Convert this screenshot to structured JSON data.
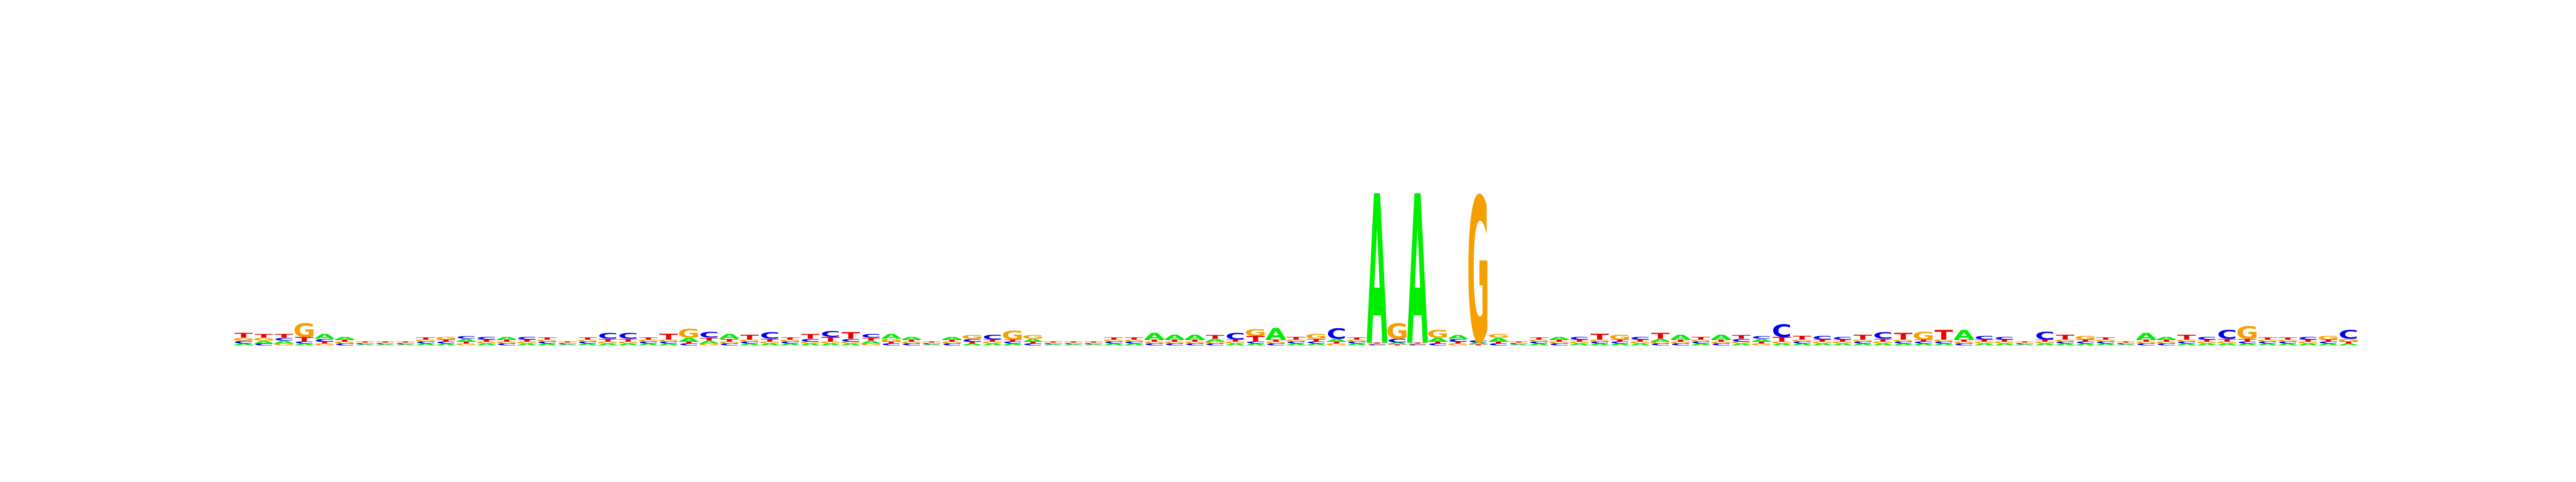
{
  "chart_data": {
    "type": "sequence-logo",
    "title": "",
    "xlabel": "",
    "ylabel": "",
    "ylim": [
      0,
      2
    ],
    "alphabet": [
      "A",
      "C",
      "G",
      "T"
    ],
    "colors": {
      "A": "#00ee00",
      "C": "#0000ee",
      "G": "#f5a000",
      "T": "#ee0000"
    },
    "positions": [
      {
        "A": 0.02,
        "C": 0.03,
        "G": 0.03,
        "T": 0.05
      },
      {
        "A": 0.03,
        "C": 0.02,
        "G": 0.03,
        "T": 0.04
      },
      {
        "A": 0.03,
        "C": 0.03,
        "G": 0.02,
        "T": 0.04
      },
      {
        "A": 0.02,
        "C": 0.02,
        "G": 0.14,
        "T": 0.05
      },
      {
        "A": 0.05,
        "C": 0.03,
        "G": 0.02,
        "T": 0.02
      },
      {
        "A": 0.03,
        "C": 0.02,
        "G": 0.02,
        "T": 0.02
      },
      {
        "A": 0.01,
        "C": 0.01,
        "G": 0.01,
        "T": 0.01
      },
      {
        "A": 0.01,
        "C": 0.01,
        "G": 0.01,
        "T": 0.01
      },
      {
        "A": 0.01,
        "C": 0.01,
        "G": 0.01,
        "T": 0.01
      },
      {
        "A": 0.02,
        "C": 0.02,
        "G": 0.02,
        "T": 0.02
      },
      {
        "A": 0.02,
        "C": 0.02,
        "G": 0.03,
        "T": 0.02
      },
      {
        "A": 0.03,
        "C": 0.03,
        "G": 0.02,
        "T": 0.02
      },
      {
        "A": 0.02,
        "C": 0.03,
        "G": 0.02,
        "T": 0.02
      },
      {
        "A": 0.03,
        "C": 0.02,
        "G": 0.02,
        "T": 0.02
      },
      {
        "A": 0.02,
        "C": 0.03,
        "G": 0.02,
        "T": 0.02
      },
      {
        "A": 0.02,
        "C": 0.02,
        "G": 0.02,
        "T": 0.02
      },
      {
        "A": 0.01,
        "C": 0.01,
        "G": 0.01,
        "T": 0.01
      },
      {
        "A": 0.02,
        "C": 0.02,
        "G": 0.02,
        "T": 0.02
      },
      {
        "A": 0.02,
        "C": 0.06,
        "G": 0.02,
        "T": 0.03
      },
      {
        "A": 0.02,
        "C": 0.06,
        "G": 0.02,
        "T": 0.03
      },
      {
        "A": 0.02,
        "C": 0.02,
        "G": 0.02,
        "T": 0.02
      },
      {
        "A": 0.02,
        "C": 0.02,
        "G": 0.02,
        "T": 0.06
      },
      {
        "A": 0.04,
        "C": 0.02,
        "G": 0.09,
        "T": 0.02
      },
      {
        "A": 0.03,
        "C": 0.06,
        "G": 0.02,
        "T": 0.03
      },
      {
        "A": 0.05,
        "C": 0.02,
        "G": 0.02,
        "T": 0.03
      },
      {
        "A": 0.02,
        "C": 0.02,
        "G": 0.02,
        "T": 0.05
      },
      {
        "A": 0.02,
        "C": 0.07,
        "G": 0.02,
        "T": 0.03
      },
      {
        "A": 0.02,
        "C": 0.02,
        "G": 0.02,
        "T": 0.02
      },
      {
        "A": 0.02,
        "C": 0.03,
        "G": 0.02,
        "T": 0.05
      },
      {
        "A": 0.02,
        "C": 0.06,
        "G": 0.02,
        "T": 0.05
      },
      {
        "A": 0.02,
        "C": 0.03,
        "G": 0.02,
        "T": 0.07
      },
      {
        "A": 0.03,
        "C": 0.04,
        "G": 0.02,
        "T": 0.03
      },
      {
        "A": 0.05,
        "C": 0.02,
        "G": 0.03,
        "T": 0.02
      },
      {
        "A": 0.03,
        "C": 0.02,
        "G": 0.02,
        "T": 0.02
      },
      {
        "A": 0.01,
        "C": 0.01,
        "G": 0.01,
        "T": 0.01
      },
      {
        "A": 0.03,
        "C": 0.02,
        "G": 0.02,
        "T": 0.02
      },
      {
        "A": 0.02,
        "C": 0.03,
        "G": 0.04,
        "T": 0.02
      },
      {
        "A": 0.02,
        "C": 0.05,
        "G": 0.02,
        "T": 0.02
      },
      {
        "A": 0.02,
        "C": 0.02,
        "G": 0.09,
        "T": 0.02
      },
      {
        "A": 0.03,
        "C": 0.02,
        "G": 0.04,
        "T": 0.02
      },
      {
        "A": 0.01,
        "C": 0.01,
        "G": 0.01,
        "T": 0.01
      },
      {
        "A": 0.01,
        "C": 0.01,
        "G": 0.01,
        "T": 0.01
      },
      {
        "A": 0.01,
        "C": 0.01,
        "G": 0.01,
        "T": 0.01
      },
      {
        "A": 0.02,
        "C": 0.02,
        "G": 0.02,
        "T": 0.02
      },
      {
        "A": 0.02,
        "C": 0.02,
        "G": 0.02,
        "T": 0.02
      },
      {
        "A": 0.07,
        "C": 0.02,
        "G": 0.02,
        "T": 0.02
      },
      {
        "A": 0.05,
        "C": 0.02,
        "G": 0.02,
        "T": 0.02
      },
      {
        "A": 0.05,
        "C": 0.02,
        "G": 0.02,
        "T": 0.02
      },
      {
        "A": 0.03,
        "C": 0.02,
        "G": 0.02,
        "T": 0.04
      },
      {
        "A": 0.02,
        "C": 0.07,
        "G": 0.02,
        "T": 0.02
      },
      {
        "A": 0.02,
        "C": 0.02,
        "G": 0.07,
        "T": 0.06
      },
      {
        "A": 0.12,
        "C": 0.02,
        "G": 0.02,
        "T": 0.02
      },
      {
        "A": 0.02,
        "C": 0.02,
        "G": 0.02,
        "T": 0.03
      },
      {
        "A": 0.02,
        "C": 0.02,
        "G": 0.05,
        "T": 0.03
      },
      {
        "A": 0.03,
        "C": 0.11,
        "G": 0.02,
        "T": 0.02
      },
      {
        "A": 0.02,
        "C": 0.02,
        "G": 0.02,
        "T": 0.02
      },
      {
        "A": 1.55,
        "C": 0.01,
        "G": 0.01,
        "T": 0.01
      },
      {
        "A": 0.02,
        "C": 0.04,
        "G": 0.16,
        "T": 0.01
      },
      {
        "A": 1.55,
        "C": 0.01,
        "G": 0.01,
        "T": 0.01
      },
      {
        "A": 0.04,
        "C": 0.02,
        "G": 0.08,
        "T": 0.02
      },
      {
        "A": 0.04,
        "C": 0.03,
        "G": 0.02,
        "T": 0.02
      },
      {
        "A": 0.02,
        "C": 0.02,
        "G": 1.5,
        "T": 0.01
      },
      {
        "A": 0.04,
        "C": 0.02,
        "G": 0.04,
        "T": 0.02
      },
      {
        "A": 0.01,
        "C": 0.01,
        "G": 0.01,
        "T": 0.01
      },
      {
        "A": 0.02,
        "C": 0.02,
        "G": 0.02,
        "T": 0.02
      },
      {
        "A": 0.03,
        "C": 0.02,
        "G": 0.02,
        "T": 0.02
      },
      {
        "A": 0.02,
        "C": 0.03,
        "G": 0.02,
        "T": 0.02
      },
      {
        "A": 0.02,
        "C": 0.02,
        "G": 0.02,
        "T": 0.06
      },
      {
        "A": 0.02,
        "C": 0.02,
        "G": 0.05,
        "T": 0.02
      },
      {
        "A": 0.02,
        "C": 0.03,
        "G": 0.02,
        "T": 0.02
      },
      {
        "A": 0.03,
        "C": 0.02,
        "G": 0.02,
        "T": 0.06
      },
      {
        "A": 0.05,
        "C": 0.02,
        "G": 0.02,
        "T": 0.02
      },
      {
        "A": 0.02,
        "C": 0.02,
        "G": 0.02,
        "T": 0.03
      },
      {
        "A": 0.05,
        "C": 0.02,
        "G": 0.02,
        "T": 0.02
      },
      {
        "A": 0.02,
        "C": 0.03,
        "G": 0.02,
        "T": 0.04
      },
      {
        "A": 0.03,
        "C": 0.03,
        "G": 0.02,
        "T": 0.02
      },
      {
        "A": 0.02,
        "C": 0.13,
        "G": 0.02,
        "T": 0.05
      },
      {
        "A": 0.02,
        "C": 0.02,
        "G": 0.02,
        "T": 0.04
      },
      {
        "A": 0.02,
        "C": 0.04,
        "G": 0.02,
        "T": 0.02
      },
      {
        "A": 0.02,
        "C": 0.03,
        "G": 0.02,
        "T": 0.02
      },
      {
        "A": 0.02,
        "C": 0.02,
        "G": 0.02,
        "T": 0.05
      },
      {
        "A": 0.02,
        "C": 0.07,
        "G": 0.02,
        "T": 0.03
      },
      {
        "A": 0.02,
        "C": 0.02,
        "G": 0.02,
        "T": 0.07
      },
      {
        "A": 0.02,
        "C": 0.02,
        "G": 0.08,
        "T": 0.02
      },
      {
        "A": 0.02,
        "C": 0.02,
        "G": 0.02,
        "T": 0.1
      },
      {
        "A": 0.1,
        "C": 0.02,
        "G": 0.02,
        "T": 0.02
      },
      {
        "A": 0.02,
        "C": 0.04,
        "G": 0.02,
        "T": 0.02
      },
      {
        "A": 0.02,
        "C": 0.03,
        "G": 0.02,
        "T": 0.02
      },
      {
        "A": 0.01,
        "C": 0.01,
        "G": 0.01,
        "T": 0.01
      },
      {
        "A": 0.02,
        "C": 0.08,
        "G": 0.02,
        "T": 0.02
      },
      {
        "A": 0.02,
        "C": 0.02,
        "G": 0.02,
        "T": 0.05
      },
      {
        "A": 0.02,
        "C": 0.02,
        "G": 0.04,
        "T": 0.02
      },
      {
        "A": 0.02,
        "C": 0.02,
        "G": 0.02,
        "T": 0.02
      },
      {
        "A": 0.01,
        "C": 0.01,
        "G": 0.01,
        "T": 0.01
      },
      {
        "A": 0.07,
        "C": 0.02,
        "G": 0.02,
        "T": 0.02
      },
      {
        "A": 0.03,
        "C": 0.02,
        "G": 0.02,
        "T": 0.02
      },
      {
        "A": 0.02,
        "C": 0.02,
        "G": 0.02,
        "T": 0.05
      },
      {
        "A": 0.02,
        "C": 0.03,
        "G": 0.02,
        "T": 0.02
      },
      {
        "A": 0.02,
        "C": 0.09,
        "G": 0.02,
        "T": 0.03
      },
      {
        "A": 0.02,
        "C": 0.02,
        "G": 0.13,
        "T": 0.03
      },
      {
        "A": 0.02,
        "C": 0.02,
        "G": 0.02,
        "T": 0.02
      },
      {
        "A": 0.02,
        "C": 0.02,
        "G": 0.02,
        "T": 0.02
      },
      {
        "A": 0.02,
        "C": 0.03,
        "G": 0.02,
        "T": 0.02
      },
      {
        "A": 0.02,
        "C": 0.02,
        "G": 0.04,
        "T": 0.02
      },
      {
        "A": 0.02,
        "C": 0.09,
        "G": 0.03,
        "T": 0.02
      }
    ]
  }
}
